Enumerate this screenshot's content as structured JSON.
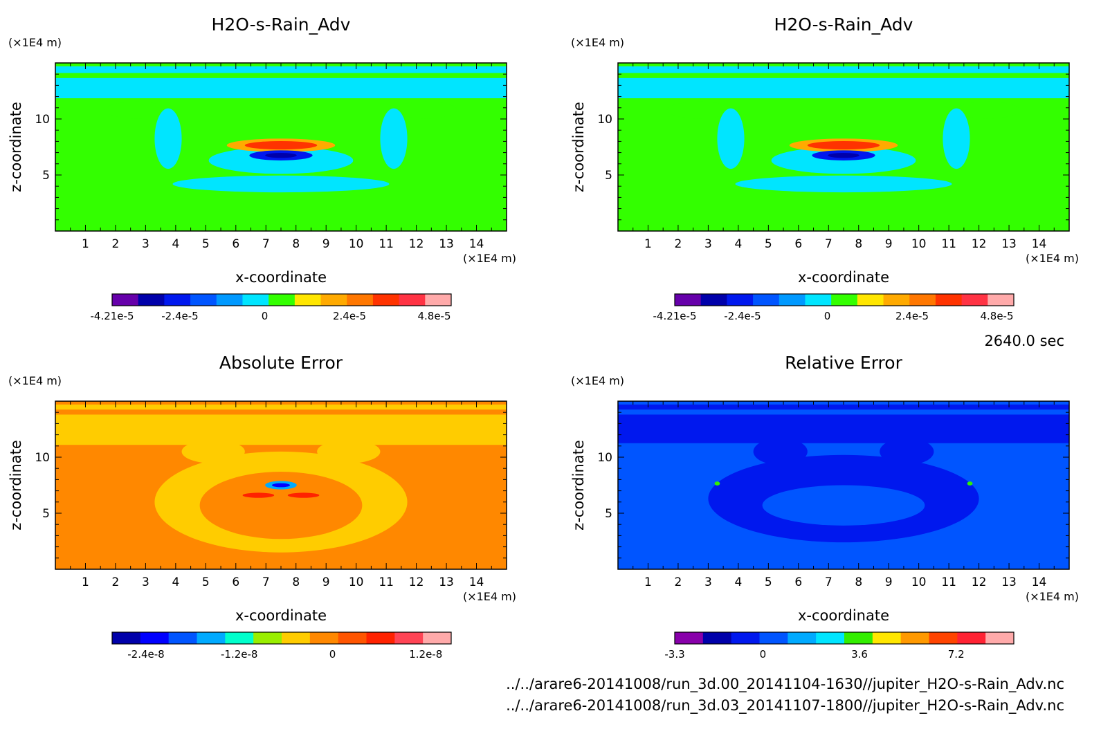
{
  "time_label": "2640.0 sec",
  "files": [
    "../../arare6-20141008/run_3d.00_20141104-1630//jupiter_H2O-s-Rain_Adv.nc",
    "../../arare6-20141008/run_3d.03_20141107-1800//jupiter_H2O-s-Rain_Adv.nc"
  ],
  "chart_data": [
    {
      "type": "heatmap",
      "title": "H2O-s-Rain_Adv",
      "xlabel": "x-coordinate",
      "ylabel": "z-coordinate",
      "x_unit": "(×1E4 m)",
      "y_unit": "(×1E4 m)",
      "xlim": [
        0,
        15
      ],
      "ylim": [
        0,
        15
      ],
      "x_ticks": [
        1,
        2,
        3,
        4,
        5,
        6,
        7,
        8,
        9,
        10,
        11,
        12,
        13,
        14
      ],
      "y_ticks": [
        5,
        10
      ],
      "background": "#33ff00",
      "colorbar": {
        "colors": [
          "#6600aa",
          "#0000aa",
          "#0018ee",
          "#0055ff",
          "#0099ff",
          "#00e5ff",
          "#33ff00",
          "#ffe600",
          "#ffaa00",
          "#ff7700",
          "#ff3300",
          "#ff3344",
          "#ffaaaa"
        ],
        "labels": [
          "-4.21e-5",
          "-2.4e-5",
          "0",
          "2.4e-5",
          "4.8e-5"
        ],
        "label_positions": [
          0.0,
          0.2,
          0.45,
          0.7,
          0.95
        ]
      }
    },
    {
      "type": "heatmap",
      "title": "H2O-s-Rain_Adv",
      "xlabel": "x-coordinate",
      "ylabel": "z-coordinate",
      "x_unit": "(×1E4 m)",
      "y_unit": "(×1E4 m)",
      "xlim": [
        0,
        15
      ],
      "ylim": [
        0,
        15
      ],
      "x_ticks": [
        1,
        2,
        3,
        4,
        5,
        6,
        7,
        8,
        9,
        10,
        11,
        12,
        13,
        14
      ],
      "y_ticks": [
        5,
        10
      ],
      "background": "#33ff00",
      "colorbar": {
        "colors": [
          "#6600aa",
          "#0000aa",
          "#0018ee",
          "#0055ff",
          "#0099ff",
          "#00e5ff",
          "#33ff00",
          "#ffe600",
          "#ffaa00",
          "#ff7700",
          "#ff3300",
          "#ff3344",
          "#ffaaaa"
        ],
        "labels": [
          "-4.21e-5",
          "-2.4e-5",
          "0",
          "2.4e-5",
          "4.8e-5"
        ],
        "label_positions": [
          0.0,
          0.2,
          0.45,
          0.7,
          0.95
        ]
      }
    },
    {
      "type": "heatmap",
      "title": "Absolute Error",
      "xlabel": "x-coordinate",
      "ylabel": "z-coordinate",
      "x_unit": "(×1E4 m)",
      "y_unit": "(×1E4 m)",
      "xlim": [
        0,
        15
      ],
      "ylim": [
        0,
        15
      ],
      "x_ticks": [
        1,
        2,
        3,
        4,
        5,
        6,
        7,
        8,
        9,
        10,
        11,
        12,
        13,
        14
      ],
      "y_ticks": [
        5,
        10
      ],
      "background": "#ff8800",
      "colorbar": {
        "colors": [
          "#0000aa",
          "#0000ff",
          "#0055ff",
          "#00aaff",
          "#00ffcc",
          "#99ee00",
          "#ffcc00",
          "#ff8800",
          "#ff5500",
          "#ff2200",
          "#ff4455",
          "#ffaaaa"
        ],
        "labels": [
          "-2.4e-8",
          "-1.2e-8",
          "0",
          "1.2e-8"
        ],
        "label_positions": [
          0.1,
          0.375,
          0.65,
          0.925
        ]
      }
    },
    {
      "type": "heatmap",
      "title": "Relative Error",
      "xlabel": "x-coordinate",
      "ylabel": "z-coordinate",
      "x_unit": "(×1E4 m)",
      "y_unit": "(×1E4 m)",
      "xlim": [
        0,
        15
      ],
      "ylim": [
        0,
        15
      ],
      "x_ticks": [
        1,
        2,
        3,
        4,
        5,
        6,
        7,
        8,
        9,
        10,
        11,
        12,
        13,
        14
      ],
      "y_ticks": [
        5,
        10
      ],
      "background": "#0055ff",
      "colorbar": {
        "colors": [
          "#8800aa",
          "#0000aa",
          "#0018ee",
          "#0055ff",
          "#00aaff",
          "#00e5ff",
          "#33ee00",
          "#ffe600",
          "#ff9900",
          "#ff4400",
          "#ff2233",
          "#ffaaaa"
        ],
        "labels": [
          "-3.3",
          "0",
          "3.6",
          "7.2"
        ],
        "label_positions": [
          0.0,
          0.26,
          0.545,
          0.83
        ]
      }
    }
  ]
}
